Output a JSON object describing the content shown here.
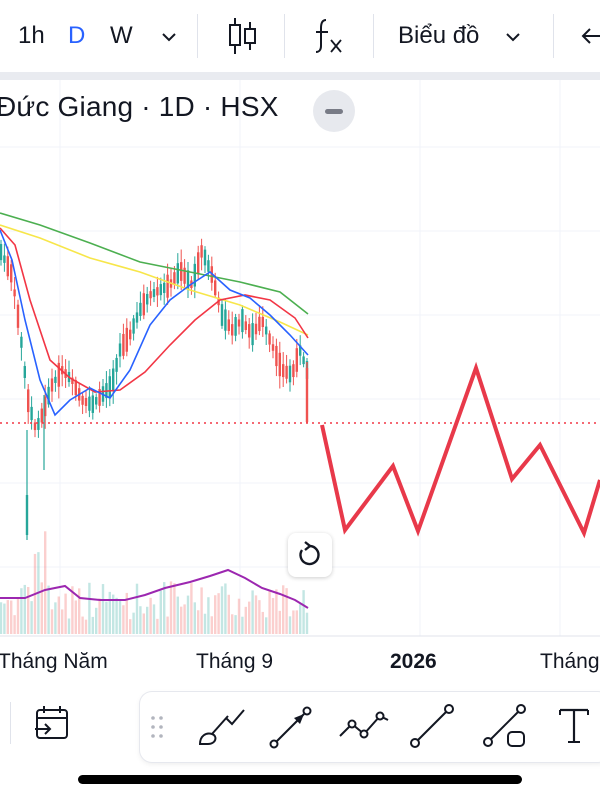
{
  "toolbar": {
    "interval_1h": "1h",
    "interval_d": "D",
    "interval_w": "W",
    "chart_type_label": "Biểu đồ",
    "accent_color": "#2962ff"
  },
  "legend": {
    "symbol_title": "Đức Giang · 1D · HSX"
  },
  "xaxis": {
    "labels": [
      "Tháng Năm",
      "Tháng 9",
      "2026",
      "Tháng"
    ]
  },
  "colors": {
    "up_candle": "#26a69a",
    "down_candle": "#ef5350",
    "ma_blue": "#2962ff",
    "ma_red": "#f23645",
    "ma_yellow": "#f7e64a",
    "ma_green": "#4caf50",
    "indicator_purple": "#9c27b0",
    "projection": "#e8394a"
  },
  "drawing_tools": [
    "brush-icon",
    "arrow-icon",
    "path-icon",
    "trend-line-icon",
    "trend-angle-icon",
    "text-icon"
  ]
}
